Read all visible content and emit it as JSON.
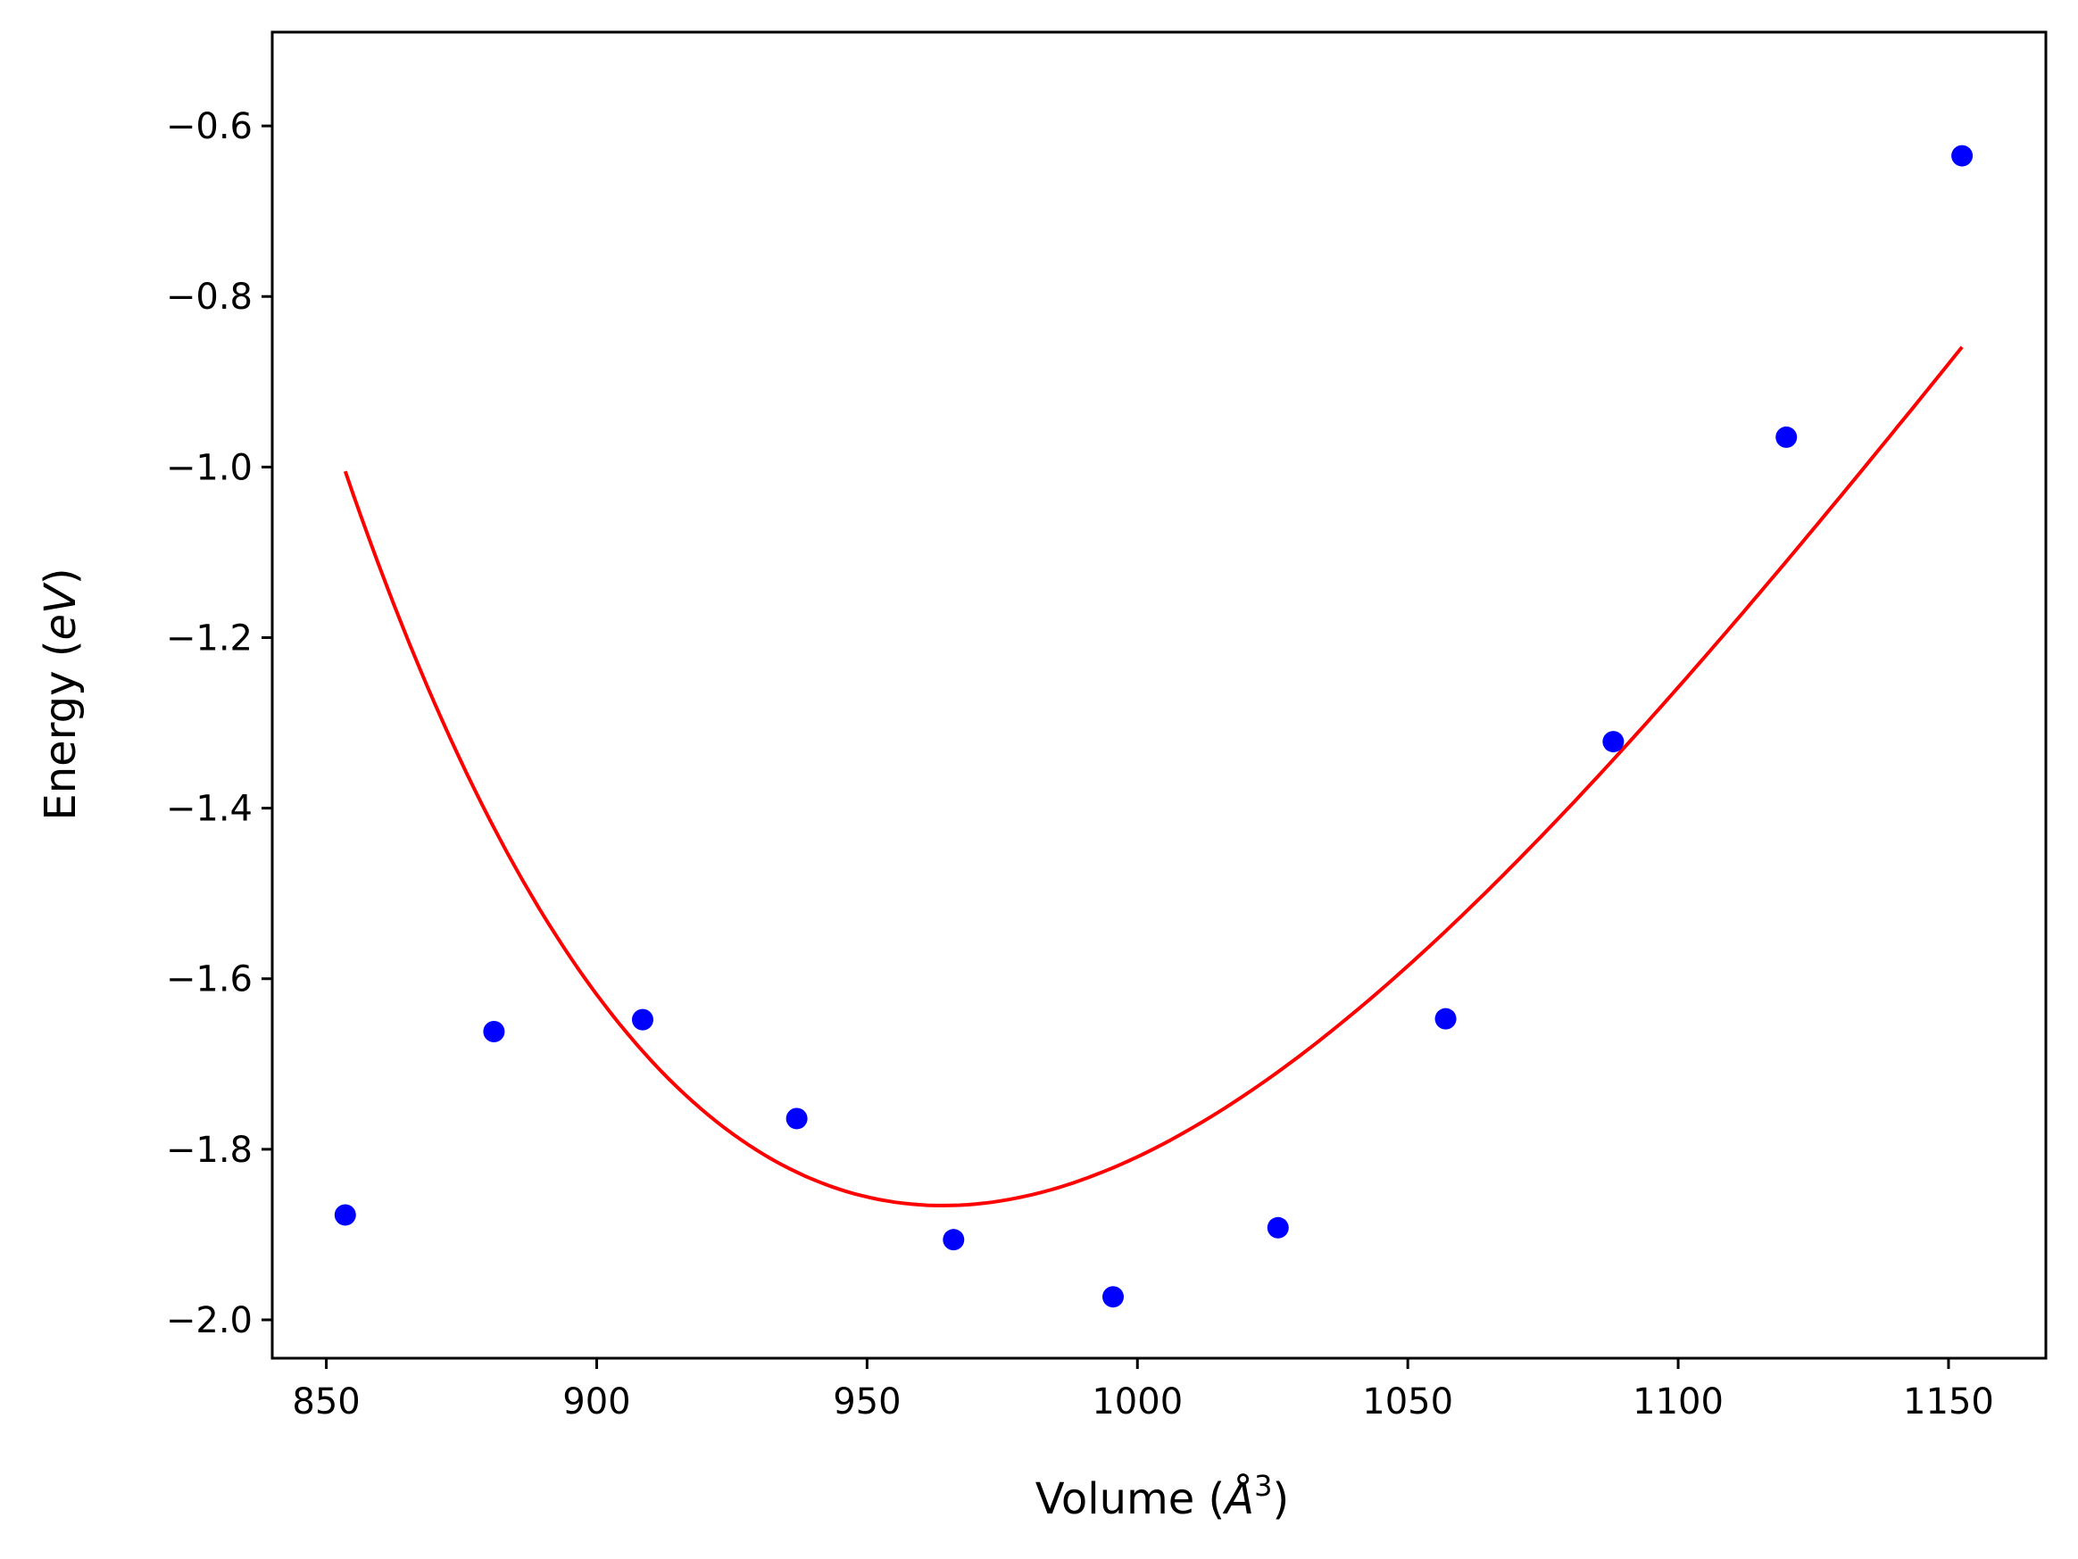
{
  "chart_data": {
    "type": "scatter",
    "title": "",
    "xlabel": "Volume (",
    "xlabel_symbol": "Å",
    "xlabel_exp": "3",
    "xlabel_end": ")",
    "ylabel": "Energy (",
    "ylabel_symbol": "eV",
    "ylabel_end": ")",
    "xlim": [
      840,
      1168
    ],
    "ylim": [
      -2.045,
      -0.49
    ],
    "xticks": [
      850,
      900,
      950,
      1000,
      1050,
      1100,
      1150
    ],
    "yticks": [
      -2.0,
      -1.8,
      -1.6,
      -1.4,
      -1.2,
      -1.0,
      -0.8,
      -0.6
    ],
    "xtick_labels": [
      "850",
      "900",
      "950",
      "1000",
      "1050",
      "1100",
      "1150"
    ],
    "ytick_labels": [
      "−2.0",
      "−1.8",
      "−1.6",
      "−1.4",
      "−1.2",
      "−1.0",
      "−0.8",
      "−0.6"
    ],
    "grid": false,
    "series": [
      {
        "kind": "scatter",
        "color": "#0000ff",
        "x": [
          853.5,
          881.0,
          908.5,
          937.0,
          966.0,
          995.5,
          1026.0,
          1057.0,
          1088.0,
          1120.0,
          1152.5
        ],
        "y": [
          -1.877,
          -1.662,
          -1.648,
          -1.764,
          -1.906,
          -1.973,
          -1.892,
          -1.647,
          -1.322,
          -0.965,
          -0.635
        ]
      },
      {
        "kind": "line",
        "color": "#ff0000",
        "fit": {
          "V0": 964.0,
          "E0": -1.866,
          "B": 0.095,
          "Bp": 8.0
        },
        "x_range": [
          853.5,
          1152.5
        ]
      }
    ]
  }
}
